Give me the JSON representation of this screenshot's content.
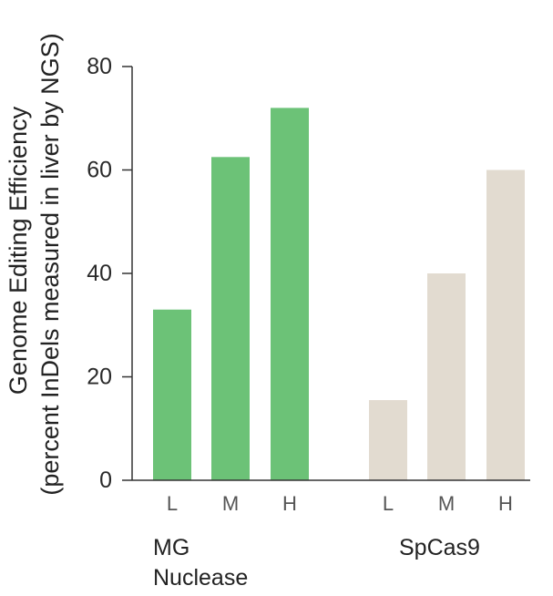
{
  "chart_data": {
    "type": "bar",
    "title": "",
    "xlabel": "",
    "ylabel": {
      "line1": "Genome Editing Efficiency",
      "line2": "(percent InDels measured in liver by NGS)"
    },
    "ylim": [
      0,
      80
    ],
    "yticks": [
      "0",
      "20",
      "40",
      "60",
      "80"
    ],
    "grid": false,
    "groups": [
      {
        "name_lines": [
          "MG",
          "Nuclease"
        ],
        "color": "#6cc277",
        "categories": [
          "L",
          "M",
          "H"
        ],
        "values": [
          33,
          62.5,
          72
        ]
      },
      {
        "name_lines": [
          "SpCas9"
        ],
        "color": "#e2dbd0",
        "categories": [
          "L",
          "M",
          "H"
        ],
        "values": [
          15.5,
          40,
          60
        ]
      }
    ]
  }
}
